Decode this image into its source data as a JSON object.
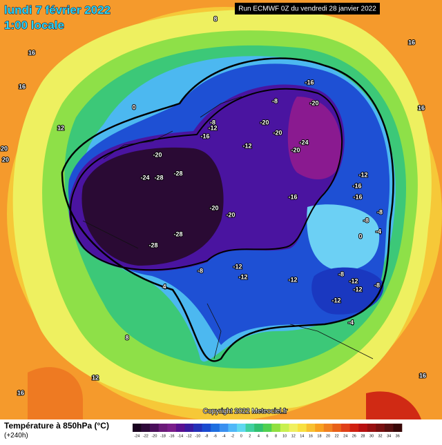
{
  "header": {
    "date_line": "lundi 7 février 2022",
    "time_line": "1:00 locale",
    "run_label": "Run ECMWF 0Z du vendredi 28 janvier 2022"
  },
  "footer": {
    "title": "Température à 850hPa (°C)",
    "subtitle": "(+240h)",
    "copyright": "Copyright 2022 Meteociel.fr"
  },
  "colorbar": {
    "ticks": [
      -24,
      -22,
      -20,
      -18,
      -16,
      -14,
      -12,
      -10,
      -8,
      -6,
      -4,
      -2,
      0,
      2,
      4,
      6,
      8,
      10,
      12,
      14,
      16,
      18,
      20,
      22,
      24,
      26,
      28,
      30,
      32,
      34,
      36
    ],
    "colors": [
      "#1a0420",
      "#2e0a3a",
      "#4a0f5a",
      "#6a1a78",
      "#7a1d8a",
      "#5a1090",
      "#3a1aa0",
      "#2430b8",
      "#1a4ad0",
      "#1e6ee0",
      "#3a90f0",
      "#50b8f8",
      "#60d8f0",
      "#40d0a0",
      "#30c070",
      "#50d050",
      "#90e040",
      "#c8f050",
      "#f0f060",
      "#f8e040",
      "#f8c030",
      "#f8a020",
      "#f08020",
      "#e86018",
      "#e04018",
      "#d02010",
      "#b81010",
      "#981010",
      "#781010",
      "#581010",
      "#380808"
    ]
  },
  "contour_labels": [
    "-16",
    "-20",
    "-8",
    "-20",
    "-20",
    "-24",
    "-20",
    "-12",
    "-8",
    "-12",
    "-16",
    "-20",
    "-24",
    "-28",
    "-28",
    "-20",
    "-20",
    "-16",
    "-12",
    "-16",
    "-16",
    "-8",
    "-8",
    "-28",
    "-28",
    "-8",
    "-12",
    "-12",
    "-12",
    "-8",
    "-12",
    "-12",
    "-8",
    "-12",
    "-4",
    "0",
    "-4",
    "4",
    "0",
    "8",
    "16",
    "16",
    "16",
    "16",
    "12",
    "20",
    "20",
    "8",
    "16",
    "16",
    "12"
  ]
}
